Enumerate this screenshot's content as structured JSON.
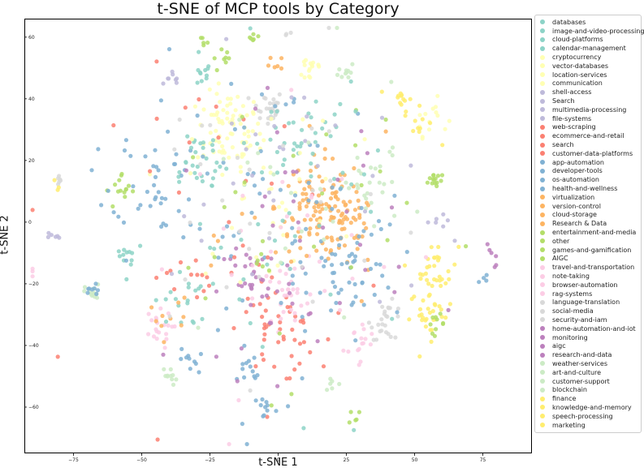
{
  "chart_data": {
    "type": "scatter",
    "title": "t-SNE of MCP tools by Category",
    "xlabel": "t-SNE 1",
    "ylabel": "t-SNE 2",
    "xlim": [
      -93,
      93
    ],
    "ylim": [
      -75,
      66
    ],
    "xticks": [
      -75,
      -50,
      -25,
      0,
      25,
      50,
      75
    ],
    "yticks": [
      -60,
      -40,
      -20,
      0,
      20,
      40,
      60
    ],
    "legend_position": "outside-right",
    "categories": [
      {
        "name": "databases",
        "color": "#8dd3c7"
      },
      {
        "name": "image-and-video-processing",
        "color": "#8dd3c7"
      },
      {
        "name": "cloud-platforms",
        "color": "#8dd3c7"
      },
      {
        "name": "calendar-management",
        "color": "#8dd3c7"
      },
      {
        "name": "cryptocurrency",
        "color": "#ffffb3"
      },
      {
        "name": "vector-databases",
        "color": "#ffffb3"
      },
      {
        "name": "location-services",
        "color": "#ffffb3"
      },
      {
        "name": "communication",
        "color": "#ffffb3"
      },
      {
        "name": "shell-access",
        "color": "#bebada"
      },
      {
        "name": "Search",
        "color": "#bebada"
      },
      {
        "name": "multimedia-processing",
        "color": "#bebada"
      },
      {
        "name": "file-systems",
        "color": "#bebada"
      },
      {
        "name": "web-scraping",
        "color": "#fb8072"
      },
      {
        "name": "ecommerce-and-retail",
        "color": "#fb8072"
      },
      {
        "name": "search",
        "color": "#fb8072"
      },
      {
        "name": "customer-data-platforms",
        "color": "#fb8072"
      },
      {
        "name": "app-automation",
        "color": "#80b1d3"
      },
      {
        "name": "developer-tools",
        "color": "#80b1d3"
      },
      {
        "name": "os-automation",
        "color": "#80b1d3"
      },
      {
        "name": "health-and-wellness",
        "color": "#80b1d3"
      },
      {
        "name": "virtualization",
        "color": "#fdb462"
      },
      {
        "name": "version-control",
        "color": "#fdb462"
      },
      {
        "name": "cloud-storage",
        "color": "#fdb462"
      },
      {
        "name": "Research & Data",
        "color": "#fdb462"
      },
      {
        "name": "entertainment-and-media",
        "color": "#b3de69"
      },
      {
        "name": "other",
        "color": "#b3de69"
      },
      {
        "name": "games-and-gamification",
        "color": "#b3de69"
      },
      {
        "name": "AIGC",
        "color": "#b3de69"
      },
      {
        "name": "travel-and-transportation",
        "color": "#fccde5"
      },
      {
        "name": "note-taking",
        "color": "#fccde5"
      },
      {
        "name": "browser-automation",
        "color": "#fccde5"
      },
      {
        "name": "rag-systems",
        "color": "#fccde5"
      },
      {
        "name": "language-translation",
        "color": "#d9d9d9"
      },
      {
        "name": "social-media",
        "color": "#d9d9d9"
      },
      {
        "name": "security-and-iam",
        "color": "#d9d9d9"
      },
      {
        "name": "home-automation-and-iot",
        "color": "#bc80bd"
      },
      {
        "name": "monitoring",
        "color": "#bc80bd"
      },
      {
        "name": "aigc",
        "color": "#bc80bd"
      },
      {
        "name": "research-and-data",
        "color": "#bc80bd"
      },
      {
        "name": "weather-services",
        "color": "#ccebc5"
      },
      {
        "name": "art-and-culture",
        "color": "#ccebc5"
      },
      {
        "name": "customer-support",
        "color": "#ccebc5"
      },
      {
        "name": "blockchain",
        "color": "#ccebc5"
      },
      {
        "name": "finance",
        "color": "#ffed6f"
      },
      {
        "name": "knowledge-and-memory",
        "color": "#ffed6f"
      },
      {
        "name": "speech-processing",
        "color": "#ffed6f"
      },
      {
        "name": "marketing",
        "color": "#ffed6f"
      }
    ],
    "clusters": [
      {
        "c": 8,
        "x": -38,
        "y": 46,
        "s": 2,
        "n": 8
      },
      {
        "c": 0,
        "x": -28,
        "y": 48,
        "s": 2,
        "n": 10
      },
      {
        "c": 25,
        "x": -27,
        "y": 60,
        "s": 1,
        "n": 5
      },
      {
        "c": 26,
        "x": -20,
        "y": 52,
        "s": 2,
        "n": 8
      },
      {
        "c": 25,
        "x": -8,
        "y": 60,
        "s": 1.2,
        "n": 6
      },
      {
        "c": 21,
        "x": -1,
        "y": 51,
        "s": 1.5,
        "n": 6
      },
      {
        "c": 32,
        "x": 3,
        "y": 60,
        "s": 1,
        "n": 3
      },
      {
        "c": 7,
        "x": -18,
        "y": 30,
        "s": 6,
        "n": 70
      },
      {
        "c": 33,
        "x": -4,
        "y": 37,
        "s": 3,
        "n": 28
      },
      {
        "c": 5,
        "x": 12,
        "y": 50,
        "s": 2.5,
        "n": 15
      },
      {
        "c": 40,
        "x": 25,
        "y": 49,
        "s": 1.5,
        "n": 10
      },
      {
        "c": 44,
        "x": 45,
        "y": 40,
        "s": 2,
        "n": 12
      },
      {
        "c": 6,
        "x": 56,
        "y": 34,
        "s": 3,
        "n": 14
      },
      {
        "c": 45,
        "x": 52,
        "y": 31,
        "s": 3,
        "n": 10
      },
      {
        "c": 24,
        "x": 57,
        "y": 14,
        "s": 1.5,
        "n": 14
      },
      {
        "c": 8,
        "x": 58,
        "y": 1,
        "s": 1.5,
        "n": 6
      },
      {
        "c": 43,
        "x": 58,
        "y": -15,
        "s": 4,
        "n": 30
      },
      {
        "c": 46,
        "x": 56,
        "y": -30,
        "s": 4,
        "n": 30
      },
      {
        "c": 24,
        "x": 58,
        "y": -33,
        "s": 1.5,
        "n": 10
      },
      {
        "c": 37,
        "x": 78,
        "y": -11,
        "s": 2,
        "n": 6
      },
      {
        "c": 18,
        "x": 76,
        "y": -19,
        "s": 1.5,
        "n": 4
      },
      {
        "c": 21,
        "x": 15,
        "y": 5,
        "s": 8,
        "n": 90
      },
      {
        "c": 23,
        "x": 24,
        "y": -3,
        "s": 6,
        "n": 40
      },
      {
        "c": 16,
        "x": 28,
        "y": -15,
        "s": 8,
        "n": 45
      },
      {
        "c": 34,
        "x": 40,
        "y": -32,
        "s": 3,
        "n": 25
      },
      {
        "c": 30,
        "x": 30,
        "y": -38,
        "s": 3,
        "n": 14
      },
      {
        "c": 12,
        "x": 0,
        "y": -35,
        "s": 7,
        "n": 45
      },
      {
        "c": 29,
        "x": 3,
        "y": -25,
        "s": 6,
        "n": 30
      },
      {
        "c": 36,
        "x": -8,
        "y": -20,
        "s": 7,
        "n": 30
      },
      {
        "c": 18,
        "x": -10,
        "y": -48,
        "s": 3,
        "n": 12
      },
      {
        "c": 17,
        "x": -5,
        "y": -60,
        "s": 2,
        "n": 10
      },
      {
        "c": 41,
        "x": 20,
        "y": -52,
        "s": 1.5,
        "n": 6
      },
      {
        "c": 25,
        "x": 28,
        "y": -63,
        "s": 1.5,
        "n": 5
      },
      {
        "c": 0,
        "x": -55,
        "y": -10,
        "s": 3,
        "n": 12
      },
      {
        "c": 26,
        "x": -57,
        "y": 10,
        "s": 3,
        "n": 14
      },
      {
        "c": 19,
        "x": -45,
        "y": 15,
        "s": 8,
        "n": 40
      },
      {
        "c": 2,
        "x": -30,
        "y": 20,
        "s": 6,
        "n": 30
      },
      {
        "c": 28,
        "x": -45,
        "y": -35,
        "s": 3,
        "n": 20
      },
      {
        "c": 40,
        "x": -40,
        "y": -50,
        "s": 1.5,
        "n": 10
      },
      {
        "c": 16,
        "x": -32,
        "y": -45,
        "s": 2,
        "n": 10
      },
      {
        "c": 3,
        "x": -35,
        "y": -25,
        "s": 5,
        "n": 18
      },
      {
        "c": 14,
        "x": -33,
        "y": -18,
        "s": 4,
        "n": 12
      },
      {
        "c": 20,
        "x": -40,
        "y": -30,
        "s": 4,
        "n": 10
      },
      {
        "c": 39,
        "x": -68,
        "y": -23,
        "s": 1.4,
        "n": 18
      },
      {
        "c": 17,
        "x": -68,
        "y": -23,
        "s": 1.4,
        "n": 8
      },
      {
        "c": 33,
        "x": -80,
        "y": 14,
        "s": 1.2,
        "n": 6
      },
      {
        "c": 43,
        "x": -81,
        "y": 12,
        "s": 1,
        "n": 3
      },
      {
        "c": 8,
        "x": -82,
        "y": -5,
        "s": 1,
        "n": 6
      },
      {
        "c": 31,
        "x": -90,
        "y": -17,
        "s": 1,
        "n": 3
      },
      {
        "c": 39,
        "x": 35,
        "y": 10,
        "s": 7,
        "n": 25
      },
      {
        "c": 0,
        "x": 10,
        "y": 25,
        "s": 10,
        "n": 40
      },
      {
        "c": 4,
        "x": -5,
        "y": 10,
        "s": 14,
        "n": 40
      },
      {
        "c": 16,
        "x": 0,
        "y": 0,
        "s": 25,
        "n": 70
      },
      {
        "c": 12,
        "x": -10,
        "y": 0,
        "s": 25,
        "n": 30
      },
      {
        "c": 35,
        "x": 5,
        "y": -5,
        "s": 22,
        "n": 40
      },
      {
        "c": 28,
        "x": 10,
        "y": -10,
        "s": 22,
        "n": 30
      },
      {
        "c": 24,
        "x": 0,
        "y": 0,
        "s": 25,
        "n": 30
      },
      {
        "c": 8,
        "x": 5,
        "y": 10,
        "s": 22,
        "n": 30
      },
      {
        "c": 33,
        "x": -10,
        "y": 5,
        "s": 25,
        "n": 30
      },
      {
        "c": 1,
        "x": 0,
        "y": -5,
        "s": 25,
        "n": 30
      },
      {
        "c": 22,
        "x": 15,
        "y": -5,
        "s": 15,
        "n": 20
      },
      {
        "c": 40,
        "x": 0,
        "y": 0,
        "s": 25,
        "n": 20
      }
    ]
  }
}
